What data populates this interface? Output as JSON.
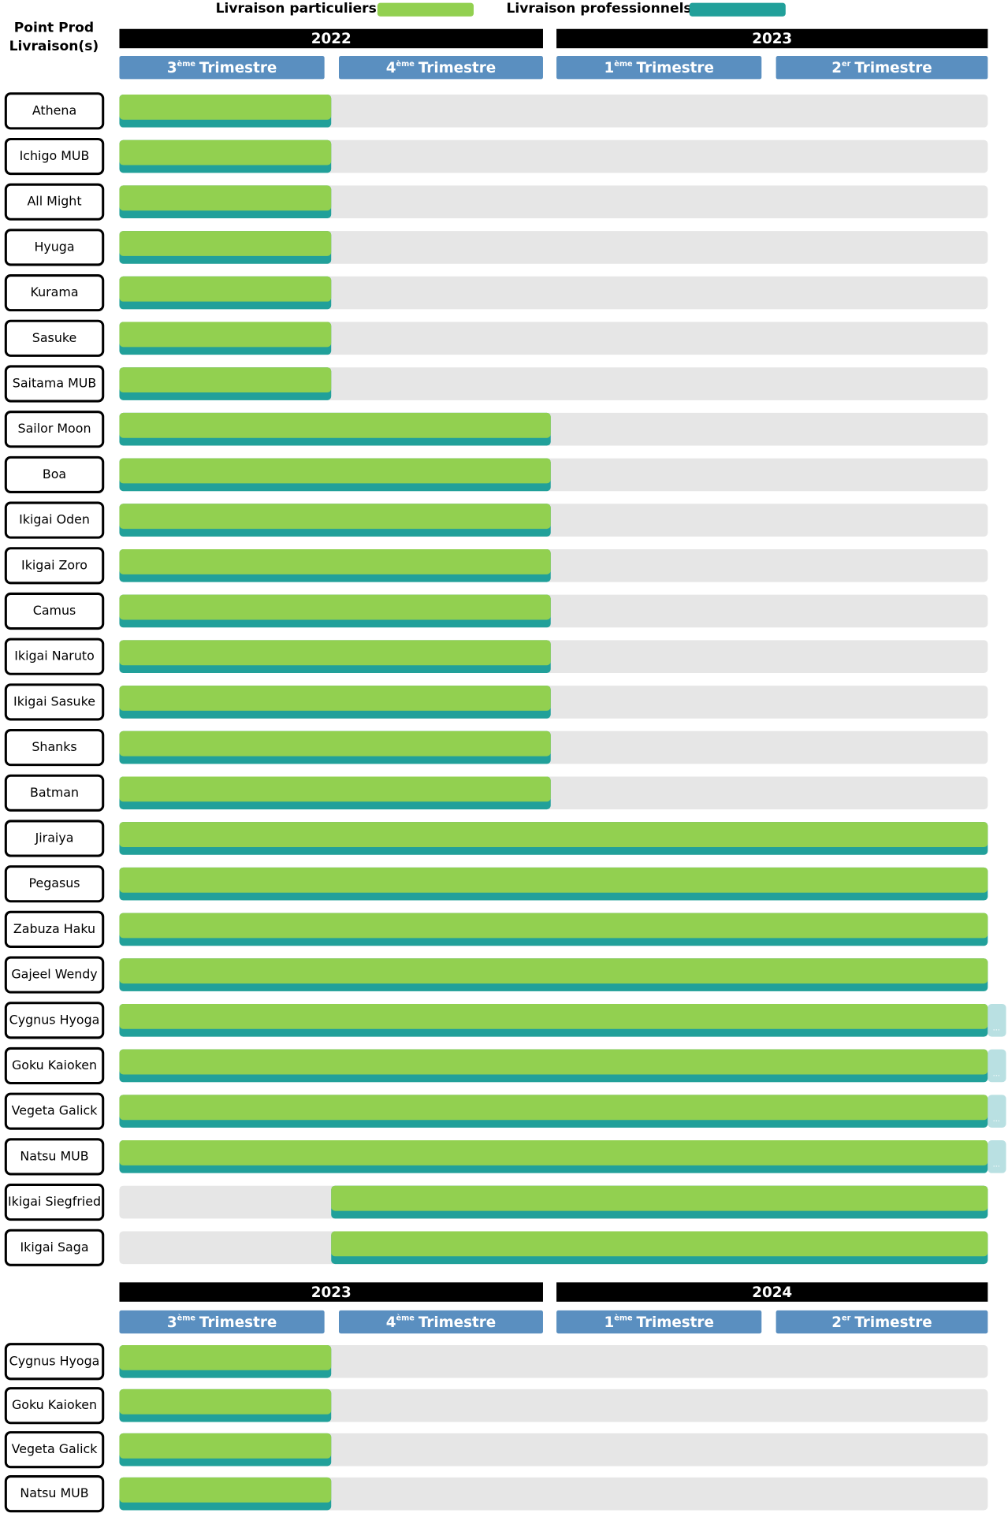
{
  "legend": [
    {
      "label": "Livraison particuliers",
      "color": "#92d050"
    },
    {
      "label": "Livraison professionnels",
      "color": "#21a09a"
    }
  ],
  "header": {
    "line1": "Point Prod",
    "line2": "Livraison(s)"
  },
  "sections": [
    {
      "years": [
        "2022",
        "2023"
      ],
      "quarters": [
        {
          "num": "3",
          "sup": "ème",
          "text": "Trimestre"
        },
        {
          "num": "4",
          "sup": "ème",
          "text": "Trimestre"
        },
        {
          "num": "1",
          "sup": "ème",
          "text": "Trimestre"
        },
        {
          "num": "2",
          "sup": "er",
          "text": "Trimestre"
        }
      ],
      "rows": [
        {
          "name": "Athena",
          "start": 0,
          "end": 1
        },
        {
          "name": "Ichigo MUB",
          "start": 0,
          "end": 1
        },
        {
          "name": "All Might",
          "start": 0,
          "end": 1
        },
        {
          "name": "Hyuga",
          "start": 0,
          "end": 1
        },
        {
          "name": "Kurama",
          "start": 0,
          "end": 1
        },
        {
          "name": "Sasuke",
          "start": 0,
          "end": 1
        },
        {
          "name": "Saitama MUB",
          "start": 0,
          "end": 1
        },
        {
          "name": "Sailor Moon",
          "start": 0,
          "end": 2
        },
        {
          "name": "Boa",
          "start": 0,
          "end": 2
        },
        {
          "name": "Ikigai Oden",
          "start": 0,
          "end": 2
        },
        {
          "name": "Ikigai Zoro",
          "start": 0,
          "end": 2
        },
        {
          "name": "Camus",
          "start": 0,
          "end": 2
        },
        {
          "name": "Ikigai Naruto",
          "start": 0,
          "end": 2
        },
        {
          "name": "Ikigai Sasuke",
          "start": 0,
          "end": 2
        },
        {
          "name": "Shanks",
          "start": 0,
          "end": 2
        },
        {
          "name": "Batman",
          "start": 0,
          "end": 2
        },
        {
          "name": "Jiraiya",
          "start": 0,
          "end": 4
        },
        {
          "name": "Pegasus",
          "start": 0,
          "end": 4
        },
        {
          "name": "Zabuza Haku",
          "start": 0,
          "end": 4
        },
        {
          "name": "Gajeel Wendy",
          "start": 0,
          "end": 4
        },
        {
          "name": "Cygnus Hyoga",
          "start": 0,
          "end": 4,
          "more": "..."
        },
        {
          "name": "Goku Kaioken",
          "start": 0,
          "end": 4,
          "more": "..."
        },
        {
          "name": "Vegeta Galick",
          "start": 0,
          "end": 4,
          "more": "..."
        },
        {
          "name": "Natsu MUB",
          "start": 0,
          "end": 4,
          "more": "..."
        },
        {
          "name": "Ikigai Siegfried",
          "start": 1,
          "end": 4
        },
        {
          "name": "Ikigai Saga",
          "start": 1,
          "end": 4
        }
      ]
    },
    {
      "years": [
        "2023",
        "2024"
      ],
      "quarters": [
        {
          "num": "3",
          "sup": "ème",
          "text": "Trimestre"
        },
        {
          "num": "4",
          "sup": "ème",
          "text": "Trimestre"
        },
        {
          "num": "1",
          "sup": "ème",
          "text": "Trimestre"
        },
        {
          "num": "2",
          "sup": "er",
          "text": "Trimestre"
        }
      ],
      "rows": [
        {
          "name": "Cygnus Hyoga",
          "start": 0,
          "end": 1
        },
        {
          "name": "Goku Kaioken",
          "start": 0,
          "end": 1
        },
        {
          "name": "Vegeta Galick",
          "start": 0,
          "end": 1
        },
        {
          "name": "Natsu MUB",
          "start": 0,
          "end": 1
        }
      ]
    }
  ]
}
